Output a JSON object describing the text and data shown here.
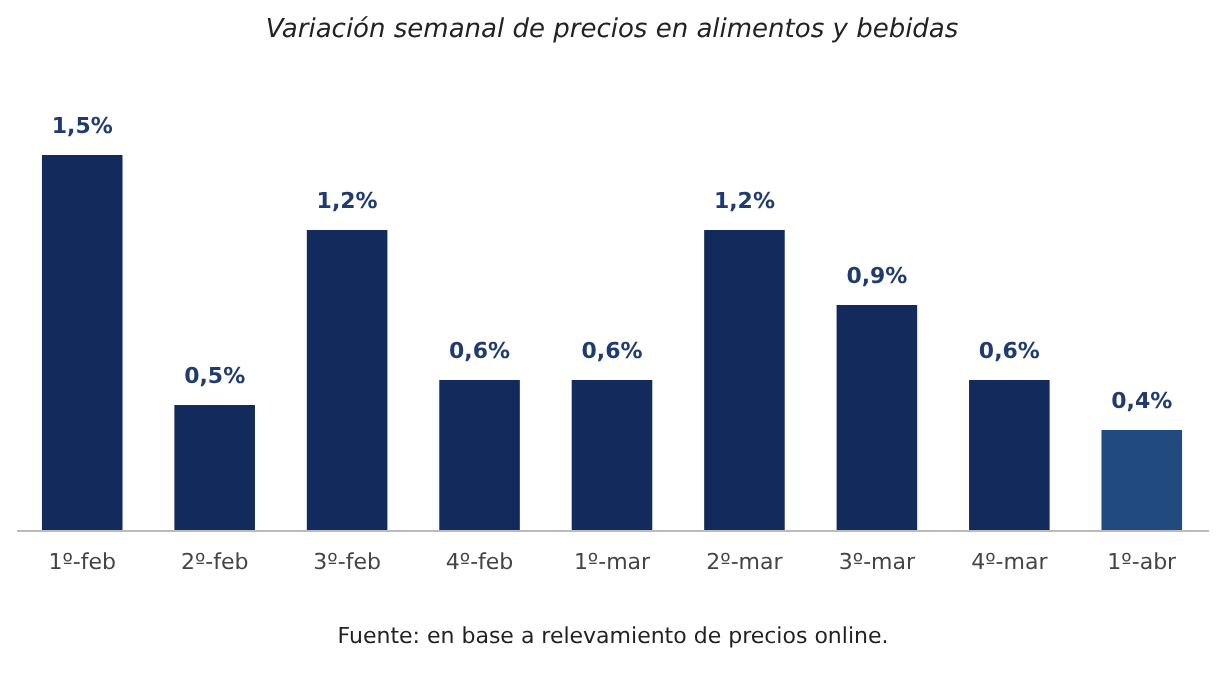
{
  "chart_data": {
    "type": "bar",
    "title": "Variación semanal de precios en alimentos y bebidas",
    "categories": [
      "1º-feb",
      "2º-feb",
      "3º-feb",
      "4º-feb",
      "1º-mar",
      "2º-mar",
      "3º-mar",
      "4º-mar",
      "1º-abr"
    ],
    "values": [
      1.5,
      0.5,
      1.2,
      0.6,
      0.6,
      1.2,
      0.9,
      0.6,
      0.4
    ],
    "value_labels": [
      "1,5%",
      "0,5%",
      "1,2%",
      "0,6%",
      "0,6%",
      "1,2%",
      "0,9%",
      "0,6%",
      "0,4%"
    ],
    "colors": [
      "#132b5c",
      "#132b5c",
      "#132b5c",
      "#132b5c",
      "#132b5c",
      "#132b5c",
      "#132b5c",
      "#132b5c",
      "#214a80"
    ],
    "annotations": [
      "Fuente: en base a relevamiento de precios online."
    ]
  }
}
